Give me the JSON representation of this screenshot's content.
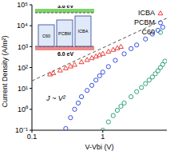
{
  "chart_data": {
    "type": "scatter",
    "x_label": "V-Vbi (V)",
    "y_label": "Current Density (A/m²)",
    "log": true,
    "grid": false,
    "legend": "upper right",
    "xlim": [
      0.1,
      8
    ],
    "xticks": [
      0.1,
      1
    ],
    "ylim": [
      0.1,
      100000
    ],
    "yticks": [
      {
        "value": 0.1,
        "label": "10⁻¹"
      },
      {
        "value": 1,
        "label": "10⁰"
      },
      {
        "value": 10,
        "label": "10¹"
      },
      {
        "value": 100,
        "label": "10²"
      },
      {
        "value": 1000,
        "label": "10³"
      },
      {
        "value": 10000,
        "label": "10⁴"
      },
      {
        "value": 100000,
        "label": "10⁵"
      }
    ],
    "series": [
      {
        "name": "ICBA",
        "color": "#e8403a",
        "marker": "triangle",
        "x": [
          0.18,
          0.2,
          0.25,
          0.3,
          0.35,
          0.4,
          0.5,
          0.6,
          0.7,
          0.8,
          0.9,
          1.0,
          1.2,
          1.4,
          1.6,
          1.8
        ],
        "values": [
          48,
          55,
          74,
          94,
          115,
          138,
          185,
          235,
          288,
          344,
          402,
          462,
          586,
          718,
          857,
          1003
        ]
      },
      {
        "name": "PCBM",
        "color": "#3a4fe0",
        "marker": "circle",
        "x": [
          0.3,
          0.35,
          0.4,
          0.45,
          0.5,
          0.6,
          0.7,
          0.8,
          0.9,
          1.0,
          1.2,
          1.5,
          2,
          2.5,
          3,
          4,
          5,
          6,
          7
        ],
        "values": [
          0.12,
          0.4,
          1.0,
          2,
          4,
          8,
          14,
          25,
          40,
          60,
          110,
          220,
          450,
          800,
          1200,
          2300,
          4000,
          6000,
          8500
        ]
      },
      {
        "name": "C60",
        "color": "#2fa37a",
        "marker": "circle",
        "x": [
          1.0,
          1.2,
          1.4,
          1.6,
          1.8,
          2,
          2.5,
          3,
          3.5,
          4,
          4.5,
          5,
          5.5,
          6,
          6.5,
          7,
          7.5
        ],
        "values": [
          0.1,
          0.25,
          0.5,
          0.9,
          1.4,
          2,
          4,
          7,
          11,
          17,
          25,
          35,
          50,
          70,
          100,
          140,
          200
        ]
      },
      {
        "name": "J ~ V²",
        "type": "line",
        "line_style": "dashed",
        "color": "#555555",
        "x": [
          0.1,
          8
        ],
        "values": [
          23,
          23000
        ]
      }
    ],
    "inset": {
      "materials": [
        "C60",
        "PCBM",
        "ICBA"
      ],
      "levels": [
        {
          "value": 3.6,
          "label": "3.6 eV",
          "color": "#7fd36a"
        },
        {
          "value": 6.0,
          "label": "6.0 eV",
          "color": "#f08a8a"
        }
      ]
    }
  }
}
